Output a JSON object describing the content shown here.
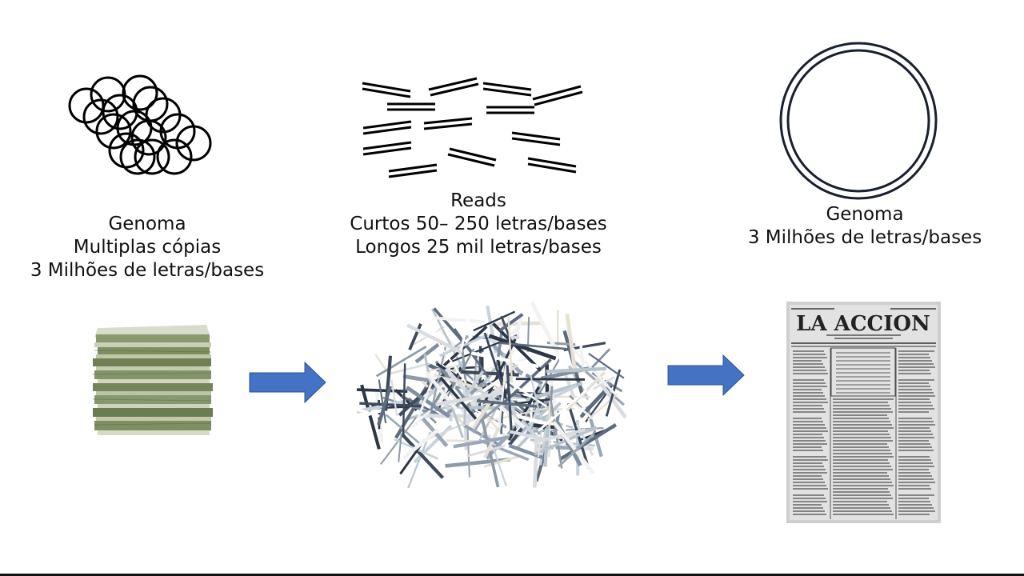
{
  "left": {
    "lines": [
      "Genoma",
      "Multiplas cópias",
      "3 Milhões de letras/bases"
    ],
    "top_icon": "overlapping-circles-icon",
    "bottom_image": "newspaper-stack-image"
  },
  "middle": {
    "lines": [
      "Reads",
      "Curtos 50– 250 letras/bases",
      "Longos 25 mil letras/bases"
    ],
    "top_icon": "read-fragments-icon",
    "bottom_image": "shredded-paper-image"
  },
  "right": {
    "lines": [
      "Genoma",
      "3 Milhões de letras/bases"
    ],
    "top_icon": "double-circle-icon",
    "bottom_image": "newspaper-page-image",
    "newspaper_title": "LA ACCION"
  },
  "arrows": {
    "icon": "right-arrow-icon",
    "color": "#4472C4"
  }
}
